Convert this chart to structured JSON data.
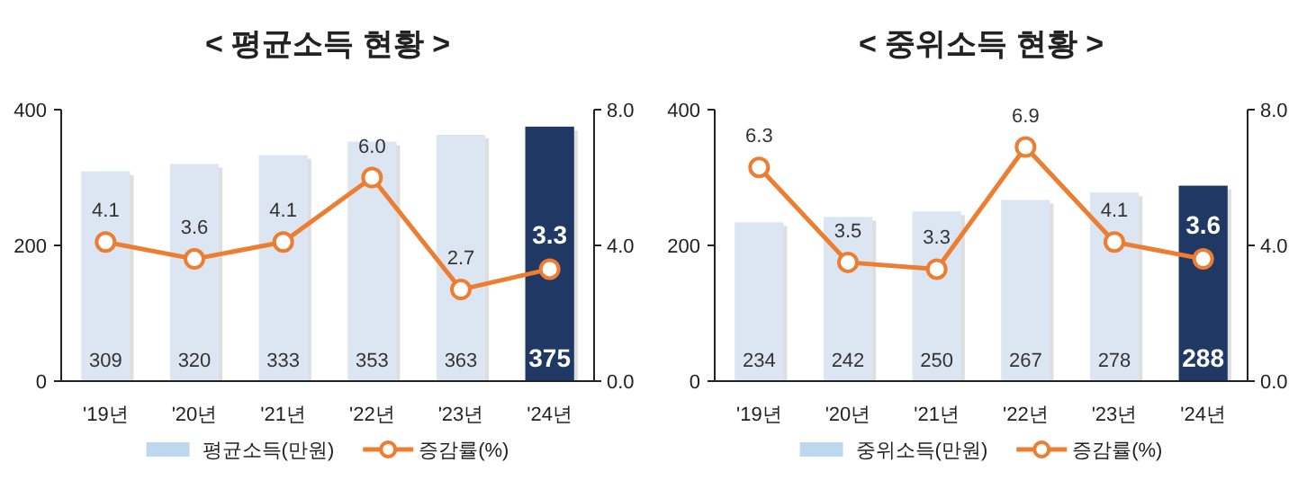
{
  "chart_data": [
    {
      "type": "bar",
      "title": "< 평균소득  현황 >",
      "categories": [
        "'19년",
        "'20년",
        "'21년",
        "'22년",
        "'23년",
        "'24년"
      ],
      "series": [
        {
          "name": "평균소득(만원)",
          "color": "#bdd7ee",
          "colors": [
            "#dce6f2",
            "#dce6f2",
            "#dce6f2",
            "#dce6f2",
            "#dce6f2",
            "#1f3864"
          ],
          "values": [
            309,
            320,
            333,
            353,
            363,
            375
          ]
        },
        {
          "name": "증감률(%)",
          "type": "line",
          "axis": "y2",
          "color": "#ed7d31",
          "values": [
            4.1,
            3.6,
            4.1,
            6.0,
            2.7,
            3.3
          ],
          "value_labels": [
            "4.1",
            "3.6",
            "4.1",
            "6.0",
            "2.7",
            "3.3"
          ]
        }
      ],
      "ylim": [
        0,
        400
      ],
      "yticks": [
        0,
        200,
        400
      ],
      "y2lim": [
        0,
        8
      ],
      "y2ticks": [
        {
          "value": 0,
          "label": "0.0"
        },
        {
          "value": 4,
          "label": "4.0"
        },
        {
          "value": 8,
          "label": "8.0"
        }
      ],
      "data_labels": true,
      "marker": "circle",
      "legend": "bottom"
    },
    {
      "type": "bar",
      "title": "< 중위소득  현황 >",
      "categories": [
        "'19년",
        "'20년",
        "'21년",
        "'22년",
        "'23년",
        "'24년"
      ],
      "series": [
        {
          "name": "중위소득(만원)",
          "color": "#bdd7ee",
          "colors": [
            "#dce6f2",
            "#dce6f2",
            "#dce6f2",
            "#dce6f2",
            "#dce6f2",
            "#1f3864"
          ],
          "values": [
            234,
            242,
            250,
            267,
            278,
            288
          ]
        },
        {
          "name": "증감률(%)",
          "type": "line",
          "axis": "y2",
          "color": "#ed7d31",
          "values": [
            6.3,
            3.5,
            3.3,
            6.9,
            4.1,
            3.6
          ],
          "value_labels": [
            "6.3",
            "3.5",
            "3.3",
            "6.9",
            "4.1",
            "3.6"
          ]
        }
      ],
      "ylim": [
        0,
        400
      ],
      "yticks": [
        0,
        200,
        400
      ],
      "y2lim": [
        0,
        8
      ],
      "y2ticks": [
        {
          "value": 0,
          "label": "0.0"
        },
        {
          "value": 4,
          "label": "4.0"
        },
        {
          "value": 8,
          "label": "8.0"
        }
      ],
      "data_labels": true,
      "marker": "circle",
      "legend": "bottom"
    }
  ]
}
